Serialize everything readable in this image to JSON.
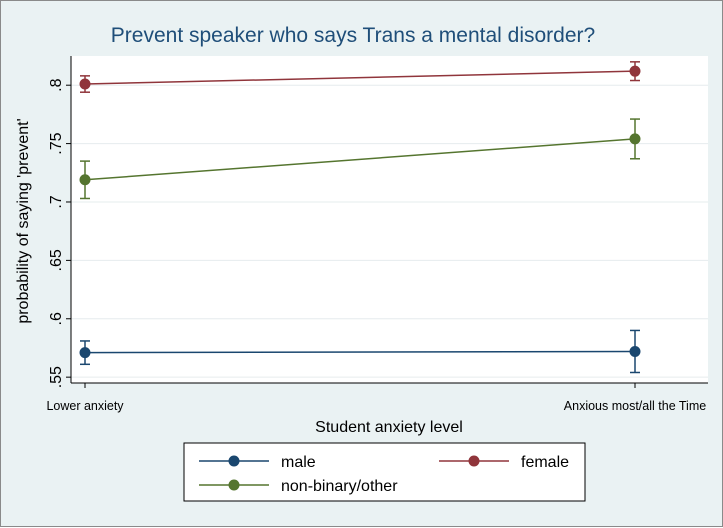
{
  "chart_data": {
    "type": "line",
    "title": "Prevent speaker who says Trans a mental disorder?",
    "xlabel": "Student anxiety level",
    "ylabel": "probability of saying 'prevent'",
    "categories": [
      "Lower anxiety",
      "Anxious most/all the Time"
    ],
    "yticks": [
      ".55",
      ".6",
      ".65",
      ".7",
      ".75",
      ".8"
    ],
    "ylim": [
      0.545,
      0.825
    ],
    "grid": true,
    "legend_position": "bottom",
    "series": [
      {
        "name": "male",
        "color": "#1a476f",
        "values": [
          0.571,
          0.572
        ],
        "ci_low": [
          0.561,
          0.554
        ],
        "ci_high": [
          0.581,
          0.59
        ]
      },
      {
        "name": "female",
        "color": "#90353b",
        "values": [
          0.801,
          0.812
        ],
        "ci_low": [
          0.794,
          0.804
        ],
        "ci_high": [
          0.808,
          0.82
        ]
      },
      {
        "name": "non-binary/other",
        "color": "#55752f",
        "values": [
          0.719,
          0.754
        ],
        "ci_low": [
          0.703,
          0.737
        ],
        "ci_high": [
          0.735,
          0.771
        ]
      }
    ]
  }
}
